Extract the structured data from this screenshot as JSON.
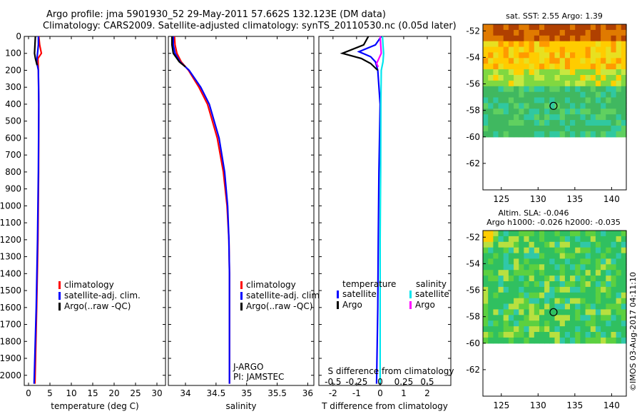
{
  "title": {
    "line1": "Argo profile: jma 5901930_52 29-May-2011 57.662S 132.123E (DM data)",
    "line2": "Climatology: CARS2009. Satellite-adjusted climatology: synTS_20110530.nc (0.05d later)"
  },
  "colors": {
    "climatology": "#ff0000",
    "satellite": "#0000ff",
    "argo": "#000000",
    "salinity_satellite": "#00e5ee",
    "salinity_argo": "#ff00ff",
    "map_circle": "#000000"
  },
  "chart_data": [
    {
      "type": "line",
      "name": "temperature-profile",
      "xlabel": "temperature (deg C)",
      "ylabel": "",
      "xlim": [
        -1,
        32
      ],
      "ylim": [
        2060,
        0
      ],
      "xticks": [
        0,
        5,
        10,
        15,
        20,
        25,
        30
      ],
      "yticks": [
        0,
        100,
        200,
        300,
        400,
        500,
        600,
        700,
        800,
        900,
        1000,
        1100,
        1200,
        1300,
        1400,
        1500,
        1600,
        1700,
        1800,
        1900,
        2000
      ],
      "legend": [
        "climatology",
        "satellite-adj. clim.",
        "Argo(..raw -QC)"
      ],
      "series": [
        {
          "name": "climatology",
          "color": "#ff0000",
          "depth": [
            0,
            50,
            100,
            130,
            200,
            400,
            800,
            1200,
            1600,
            2050
          ],
          "values": [
            2.4,
            2.6,
            3.0,
            2.2,
            2.3,
            2.4,
            2.35,
            2.2,
            1.9,
            1.5
          ]
        },
        {
          "name": "satellite-adj. clim.",
          "color": "#0000ff",
          "depth": [
            0,
            50,
            100,
            150,
            200,
            400,
            800,
            1200,
            1600,
            2050
          ],
          "values": [
            2.3,
            2.3,
            2.1,
            1.9,
            2.3,
            2.4,
            2.3,
            2.1,
            1.8,
            1.3
          ]
        },
        {
          "name": "Argo(..raw -QC)",
          "color": "#000000",
          "depth": [
            0,
            50,
            100,
            130,
            170
          ],
          "values": [
            1.6,
            1.5,
            1.4,
            1.6,
            2.0
          ]
        }
      ]
    },
    {
      "type": "line",
      "name": "salinity-profile",
      "xlabel": "salinity",
      "xlim": [
        33.72,
        36.1
      ],
      "ylim": [
        2060,
        0
      ],
      "xticks": [
        34,
        34.5,
        35,
        35.5,
        36
      ],
      "legend": [
        "climatology",
        "satellite-adj. clim.",
        "Argo(..raw -QC)"
      ],
      "annotations": [
        "J-ARGO",
        "PI: JAMSTEC"
      ],
      "series": [
        {
          "name": "climatology",
          "color": "#ff0000",
          "depth": [
            0,
            50,
            100,
            150,
            200,
            300,
            400,
            600,
            800,
            1000,
            1200,
            1400,
            1600,
            1800,
            2050
          ],
          "values": [
            33.82,
            33.83,
            33.86,
            33.93,
            34.05,
            34.22,
            34.36,
            34.52,
            34.62,
            34.68,
            34.71,
            34.72,
            34.72,
            34.72,
            34.72
          ]
        },
        {
          "name": "satellite-adj. clim.",
          "color": "#0000ff",
          "depth": [
            0,
            50,
            100,
            150,
            200,
            300,
            400,
            600,
            800,
            1000,
            1200,
            1400,
            1600,
            1800,
            2050
          ],
          "values": [
            33.8,
            33.8,
            33.83,
            33.91,
            34.06,
            34.25,
            34.39,
            34.55,
            34.64,
            34.69,
            34.71,
            34.72,
            34.72,
            34.72,
            34.72
          ]
        },
        {
          "name": "Argo(..raw -QC)",
          "color": "#000000",
          "depth": [
            0,
            50,
            100,
            150,
            180
          ],
          "values": [
            33.78,
            33.78,
            33.8,
            33.9,
            34.0
          ]
        }
      ]
    },
    {
      "type": "line",
      "name": "difference-profile",
      "xlabel": "T difference from climatology",
      "x2label": "S difference from climatology",
      "xlim": [
        -2.6,
        3.0
      ],
      "x2lim": [
        -0.65,
        0.75
      ],
      "ylim": [
        2060,
        0
      ],
      "xticks": [
        -2,
        -1,
        0,
        1,
        2
      ],
      "x2ticks": [
        -0.5,
        -0.25,
        0,
        0.25,
        0.5
      ],
      "x2ticklabels": [
        "-0.5",
        "-0.25",
        "0",
        "0.25",
        "0.5"
      ],
      "legend_groups": {
        "temperature": [
          "satellite",
          "Argo"
        ],
        "salinity": [
          "satellite",
          "Argo"
        ]
      },
      "series": [
        {
          "name": "temperature satellite",
          "color": "#0000ff",
          "depth": [
            0,
            50,
            90,
            120,
            150,
            200,
            400,
            800,
            1200,
            1600,
            2050
          ],
          "values": [
            0.05,
            -0.2,
            -0.9,
            -0.4,
            -0.2,
            -0.1,
            0.0,
            -0.05,
            -0.08,
            -0.1,
            -0.15
          ]
        },
        {
          "name": "temperature Argo",
          "color": "#000000",
          "depth": [
            0,
            50,
            100,
            130,
            160,
            200
          ],
          "values": [
            -0.5,
            -0.7,
            -1.6,
            -0.8,
            -0.4,
            -0.1
          ]
        },
        {
          "name": "salinity satellite",
          "color": "#00e5ee",
          "depth": [
            0,
            50,
            100,
            150,
            200,
            400,
            800,
            1200,
            1600,
            2050
          ],
          "values": [
            0.1,
            0.12,
            0.15,
            0.12,
            0.05,
            0.03,
            0.02,
            0.0,
            0.0,
            0.0
          ]
        },
        {
          "name": "salinity Argo",
          "color": "#ff00ff",
          "depth": [
            0,
            100,
            130,
            160,
            180
          ],
          "values": [
            0.0,
            0.05,
            -0.05,
            -0.15,
            -0.08
          ]
        }
      ]
    },
    {
      "type": "heatmap",
      "name": "sst-map",
      "title": "sat. SST: 2.55 Argo: 1.39",
      "xlim": [
        122.5,
        142
      ],
      "ylim": [
        -64,
        -51.5
      ],
      "xticks": [
        125,
        130,
        135,
        140
      ],
      "yticks": [
        -52,
        -54,
        -56,
        -58,
        -60,
        -62
      ],
      "data_extent_lat": [
        -60,
        -51.5
      ],
      "marker": {
        "lon": 132.1,
        "lat": -57.66
      }
    },
    {
      "type": "heatmap",
      "name": "sla-map",
      "title_lines": [
        "Altim. SLA: -0.046",
        "Argo h1000: -0.026 h2000: -0.035"
      ],
      "xlim": [
        122.5,
        142
      ],
      "ylim": [
        -64,
        -51.5
      ],
      "xticks": [
        125,
        130,
        135,
        140
      ],
      "yticks": [
        -52,
        -54,
        -56,
        -58,
        -60,
        -62
      ],
      "data_extent_lat": [
        -60,
        -51.5
      ],
      "marker": {
        "lon": 132.1,
        "lat": -57.66
      }
    }
  ],
  "credit": "©IMOS 03-Aug-2017 04:11:10"
}
